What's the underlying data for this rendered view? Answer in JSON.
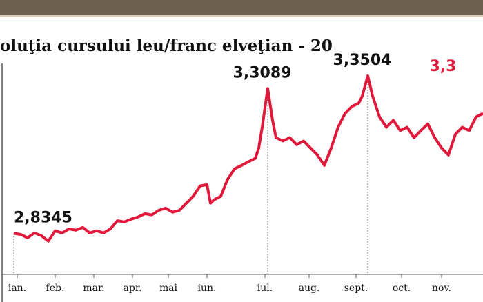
{
  "chart_data": {
    "type": "line",
    "title": "oluţia cursului leu/franc elveţian - 20",
    "color": "#e0193a",
    "x": [
      0,
      5,
      10,
      15,
      20,
      25,
      30,
      35,
      40,
      45,
      50,
      55,
      60,
      65,
      70,
      75,
      80,
      85,
      90,
      95,
      100,
      105,
      110,
      115,
      120,
      125,
      130,
      135,
      140,
      142.5,
      145,
      150,
      155,
      160,
      165,
      170,
      175,
      177.5,
      180,
      184,
      187.5,
      190,
      195,
      200,
      205,
      210,
      215,
      220,
      225,
      230,
      235,
      240,
      245,
      250,
      252.5,
      256.5,
      260,
      265,
      270,
      275,
      280,
      285,
      290,
      295,
      300,
      305,
      310,
      315,
      320,
      325,
      330,
      335,
      340
    ],
    "values": [
      2.8345,
      2.831,
      2.82,
      2.836,
      2.827,
      2.809,
      2.843,
      2.836,
      2.849,
      2.845,
      2.854,
      2.836,
      2.843,
      2.836,
      2.849,
      2.876,
      2.872,
      2.881,
      2.888,
      2.899,
      2.895,
      2.91,
      2.917,
      2.904,
      2.91,
      2.933,
      2.956,
      2.99,
      2.994,
      2.933,
      2.944,
      2.956,
      3.012,
      3.046,
      3.057,
      3.069,
      3.08,
      3.114,
      3.182,
      3.3089,
      3.205,
      3.148,
      3.137,
      3.148,
      3.125,
      3.137,
      3.114,
      3.091,
      3.057,
      3.114,
      3.182,
      3.227,
      3.25,
      3.261,
      3.284,
      3.3504,
      3.284,
      3.216,
      3.182,
      3.205,
      3.171,
      3.182,
      3.148,
      3.171,
      3.193,
      3.148,
      3.114,
      3.091,
      3.159,
      3.182,
      3.171,
      3.216,
      3.227
    ],
    "xlim": [
      0,
      340
    ],
    "ylim": [
      2.7,
      3.4
    ],
    "xticks": [
      {
        "value": 2.5,
        "label": "ian."
      },
      {
        "value": 30,
        "label": "feb."
      },
      {
        "value": 58,
        "label": "mar."
      },
      {
        "value": 86,
        "label": "apr."
      },
      {
        "value": 112,
        "label": "mai"
      },
      {
        "value": 140,
        "label": "iun."
      },
      {
        "value": 182,
        "label": "iul."
      },
      {
        "value": 214,
        "label": "aug."
      },
      {
        "value": 248,
        "label": "sept."
      },
      {
        "value": 281,
        "label": "oct."
      },
      {
        "value": 310,
        "label": "nov."
      }
    ],
    "annotations": [
      {
        "label": "2,8345",
        "x": 0,
        "value": 2.8345,
        "color": "#111111"
      },
      {
        "label": "3,3089",
        "x": 184,
        "value": 3.3089,
        "color": "#111111"
      },
      {
        "label": "3,3504",
        "x": 256.5,
        "value": 3.3504,
        "color": "#111111"
      },
      {
        "label": "3,3",
        "x": 315,
        "value": 3.33,
        "color": "#e0193a"
      }
    ]
  }
}
